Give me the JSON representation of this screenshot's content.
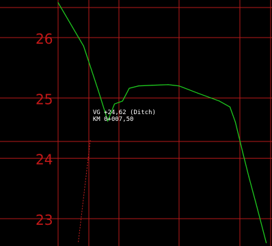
{
  "chart_data": {
    "type": "line",
    "title": "",
    "xlabel": "",
    "ylabel": "",
    "grid": true,
    "ylim": [
      22.6,
      26.6
    ],
    "y_ticks": [
      23,
      24,
      25,
      26
    ],
    "y_tick_labels": [
      "23",
      "24",
      "25",
      "26"
    ],
    "colors": {
      "background": "#000000",
      "grid": "#b81a1a",
      "tick_labels": "#c41818",
      "profile": "#1ec81e",
      "marker": "#d02020",
      "annotation": "#ffffff"
    },
    "profile": [
      {
        "x": 0.0,
        "y": 26.58
      },
      {
        "x": 9.5,
        "y": 25.86
      },
      {
        "x": 15.0,
        "y": 25.12
      },
      {
        "x": 18.5,
        "y": 24.62
      },
      {
        "x": 21.0,
        "y": 24.9
      },
      {
        "x": 24.0,
        "y": 24.95
      },
      {
        "x": 26.5,
        "y": 25.16
      },
      {
        "x": 30.0,
        "y": 25.2
      },
      {
        "x": 35.0,
        "y": 25.21
      },
      {
        "x": 41.0,
        "y": 25.22
      },
      {
        "x": 45.0,
        "y": 25.2
      },
      {
        "x": 52.0,
        "y": 25.08
      },
      {
        "x": 60.0,
        "y": 24.95
      },
      {
        "x": 64.0,
        "y": 24.85
      },
      {
        "x": 66.0,
        "y": 24.6
      },
      {
        "x": 69.0,
        "y": 24.05
      },
      {
        "x": 71.0,
        "y": 23.7
      },
      {
        "x": 74.0,
        "y": 23.2
      },
      {
        "x": 77.5,
        "y": 22.6
      }
    ],
    "marker_line": {
      "top": {
        "x": 12.0,
        "y": 24.3
      },
      "bottom": {
        "x": 7.5,
        "y": 22.6
      }
    },
    "annotation": {
      "lines": [
        "VG +24,62 (Ditch)",
        "KM 0+007,50"
      ],
      "anchor": {
        "x": 16.0,
        "y": 24.62
      }
    }
  }
}
